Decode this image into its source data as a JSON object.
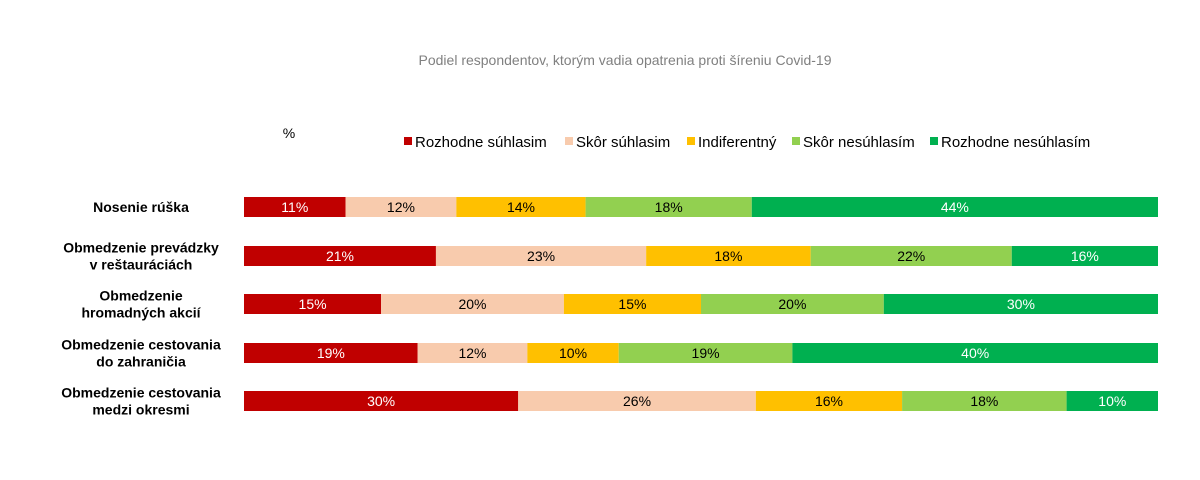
{
  "chart_data": {
    "type": "bar",
    "orientation": "horizontal",
    "stacked": true,
    "title": "Podiel respondentov, ktorým vadia opatrenia proti šíreniu Covid-19",
    "unit_label": "%",
    "legend_position": "top",
    "grid": false,
    "xlim": [
      0,
      100
    ],
    "categories": [
      [
        "Nosenie rúška"
      ],
      [
        "Obmedzenie prevádzky",
        "v reštauráciách"
      ],
      [
        "Obmedzenie",
        "hromadných akcií"
      ],
      [
        "Obmedzenie cestovania",
        "do zahraničia"
      ],
      [
        "Obmedzenie cestovania",
        "medzi okresmi"
      ]
    ],
    "series": [
      {
        "name": "Rozhodne súhlasim",
        "color": "#c00000",
        "label_color": "#ffffff",
        "values": [
          11,
          21,
          15,
          19,
          30
        ],
        "labels": [
          "11%",
          "21%",
          "15%",
          "19%",
          "30%"
        ]
      },
      {
        "name": "Skôr súhlasim",
        "color": "#f8cbad",
        "label_color": "#000000",
        "values": [
          12,
          23,
          20,
          12,
          26
        ],
        "labels": [
          "12%",
          "23%",
          "20%",
          "12%",
          "26%"
        ]
      },
      {
        "name": "Indiferentný",
        "color": "#ffc000",
        "label_color": "#000000",
        "values": [
          14,
          18,
          15,
          10,
          16
        ],
        "labels": [
          "14%",
          "18%",
          "15%",
          "10%",
          "16%"
        ]
      },
      {
        "name": "Skôr nesúhlasím",
        "color": "#92d050",
        "label_color": "#000000",
        "values": [
          18,
          22,
          20,
          19,
          18
        ],
        "labels": [
          "18%",
          "22%",
          "20%",
          "19%",
          "18%"
        ]
      },
      {
        "name": "Rozhodne nesúhlasím",
        "color": "#00b050",
        "label_color": "#ffffff",
        "values": [
          44,
          16,
          30,
          40,
          10
        ],
        "labels": [
          "44%",
          "16%",
          "30%",
          "40%",
          "10%"
        ]
      }
    ]
  }
}
